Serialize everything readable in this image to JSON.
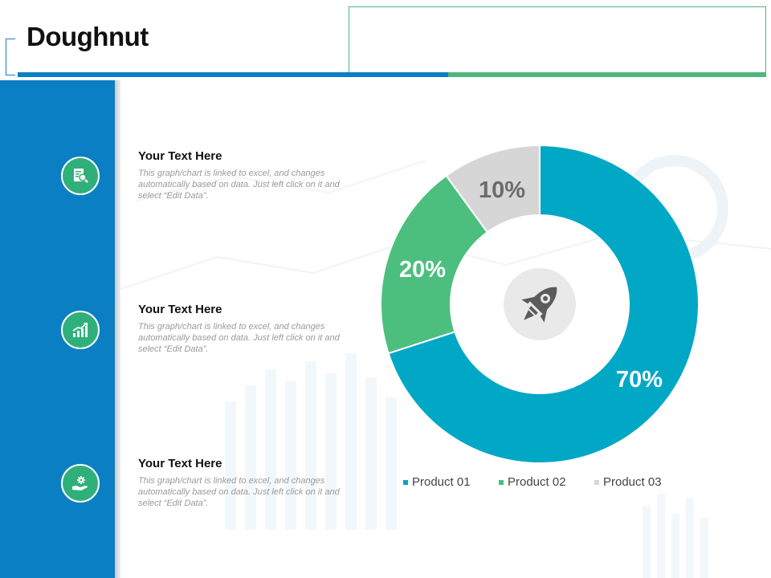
{
  "header": {
    "title": "Doughnut"
  },
  "colors": {
    "blue": "#0a7fc4",
    "green": "#4cb87a",
    "teal": "#00a8c6",
    "gray": "#d6d6d6",
    "icon_gray": "#555555"
  },
  "items": [
    {
      "icon": "document-search-icon",
      "heading": "Your Text Here",
      "body": "This graph/chart is linked to excel, and changes automatically based on data. Just left click on it and select “Edit Data”."
    },
    {
      "icon": "growth-chart-icon",
      "heading": "Your Text Here",
      "body": "This graph/chart is linked to excel, and changes automatically based on data. Just left click on it and select “Edit Data”."
    },
    {
      "icon": "hand-gear-icon",
      "heading": "Your Text Here",
      "body": "This graph/chart is linked to excel, and changes automatically based on data. Just left click on it and select “Edit Data”."
    }
  ],
  "chart_data": {
    "type": "doughnut",
    "center_icon": "rocket-icon",
    "series": [
      {
        "name": "Product 01",
        "value": 70,
        "label": "70%",
        "color": "#00a8c6",
        "label_color": "#ffffff"
      },
      {
        "name": "Product 02",
        "value": 20,
        "label": "20%",
        "color": "#4cbf7e",
        "label_color": "#ffffff"
      },
      {
        "name": "Product 03",
        "value": 10,
        "label": "10%",
        "color": "#d6d6d6",
        "label_color": "#6b6b6b"
      }
    ],
    "legend": "bottom"
  }
}
